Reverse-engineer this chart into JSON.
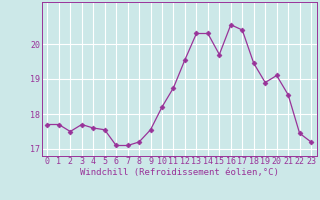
{
  "x": [
    0,
    1,
    2,
    3,
    4,
    5,
    6,
    7,
    8,
    9,
    10,
    11,
    12,
    13,
    14,
    15,
    16,
    17,
    18,
    19,
    20,
    21,
    22,
    23
  ],
  "y": [
    17.7,
    17.7,
    17.5,
    17.7,
    17.6,
    17.55,
    17.1,
    17.1,
    17.2,
    17.55,
    18.2,
    18.75,
    19.55,
    20.3,
    20.3,
    19.7,
    20.55,
    20.4,
    19.45,
    18.9,
    19.1,
    18.55,
    17.45,
    17.2
  ],
  "line_color": "#993399",
  "marker": "D",
  "markersize": 2.5,
  "linewidth": 0.9,
  "bg_color": "#cce8e8",
  "grid_color": "#ffffff",
  "xlabel": "Windchill (Refroidissement éolien,°C)",
  "xlabel_fontsize": 6.5,
  "xlabel_color": "#993399",
  "tick_color": "#993399",
  "tick_fontsize": 6.0,
  "ylim": [
    16.8,
    21.2
  ],
  "xlim": [
    -0.5,
    23.5
  ],
  "yticks": [
    17,
    18,
    19,
    20
  ],
  "xticks": [
    0,
    1,
    2,
    3,
    4,
    5,
    6,
    7,
    8,
    9,
    10,
    11,
    12,
    13,
    14,
    15,
    16,
    17,
    18,
    19,
    20,
    21,
    22,
    23
  ]
}
